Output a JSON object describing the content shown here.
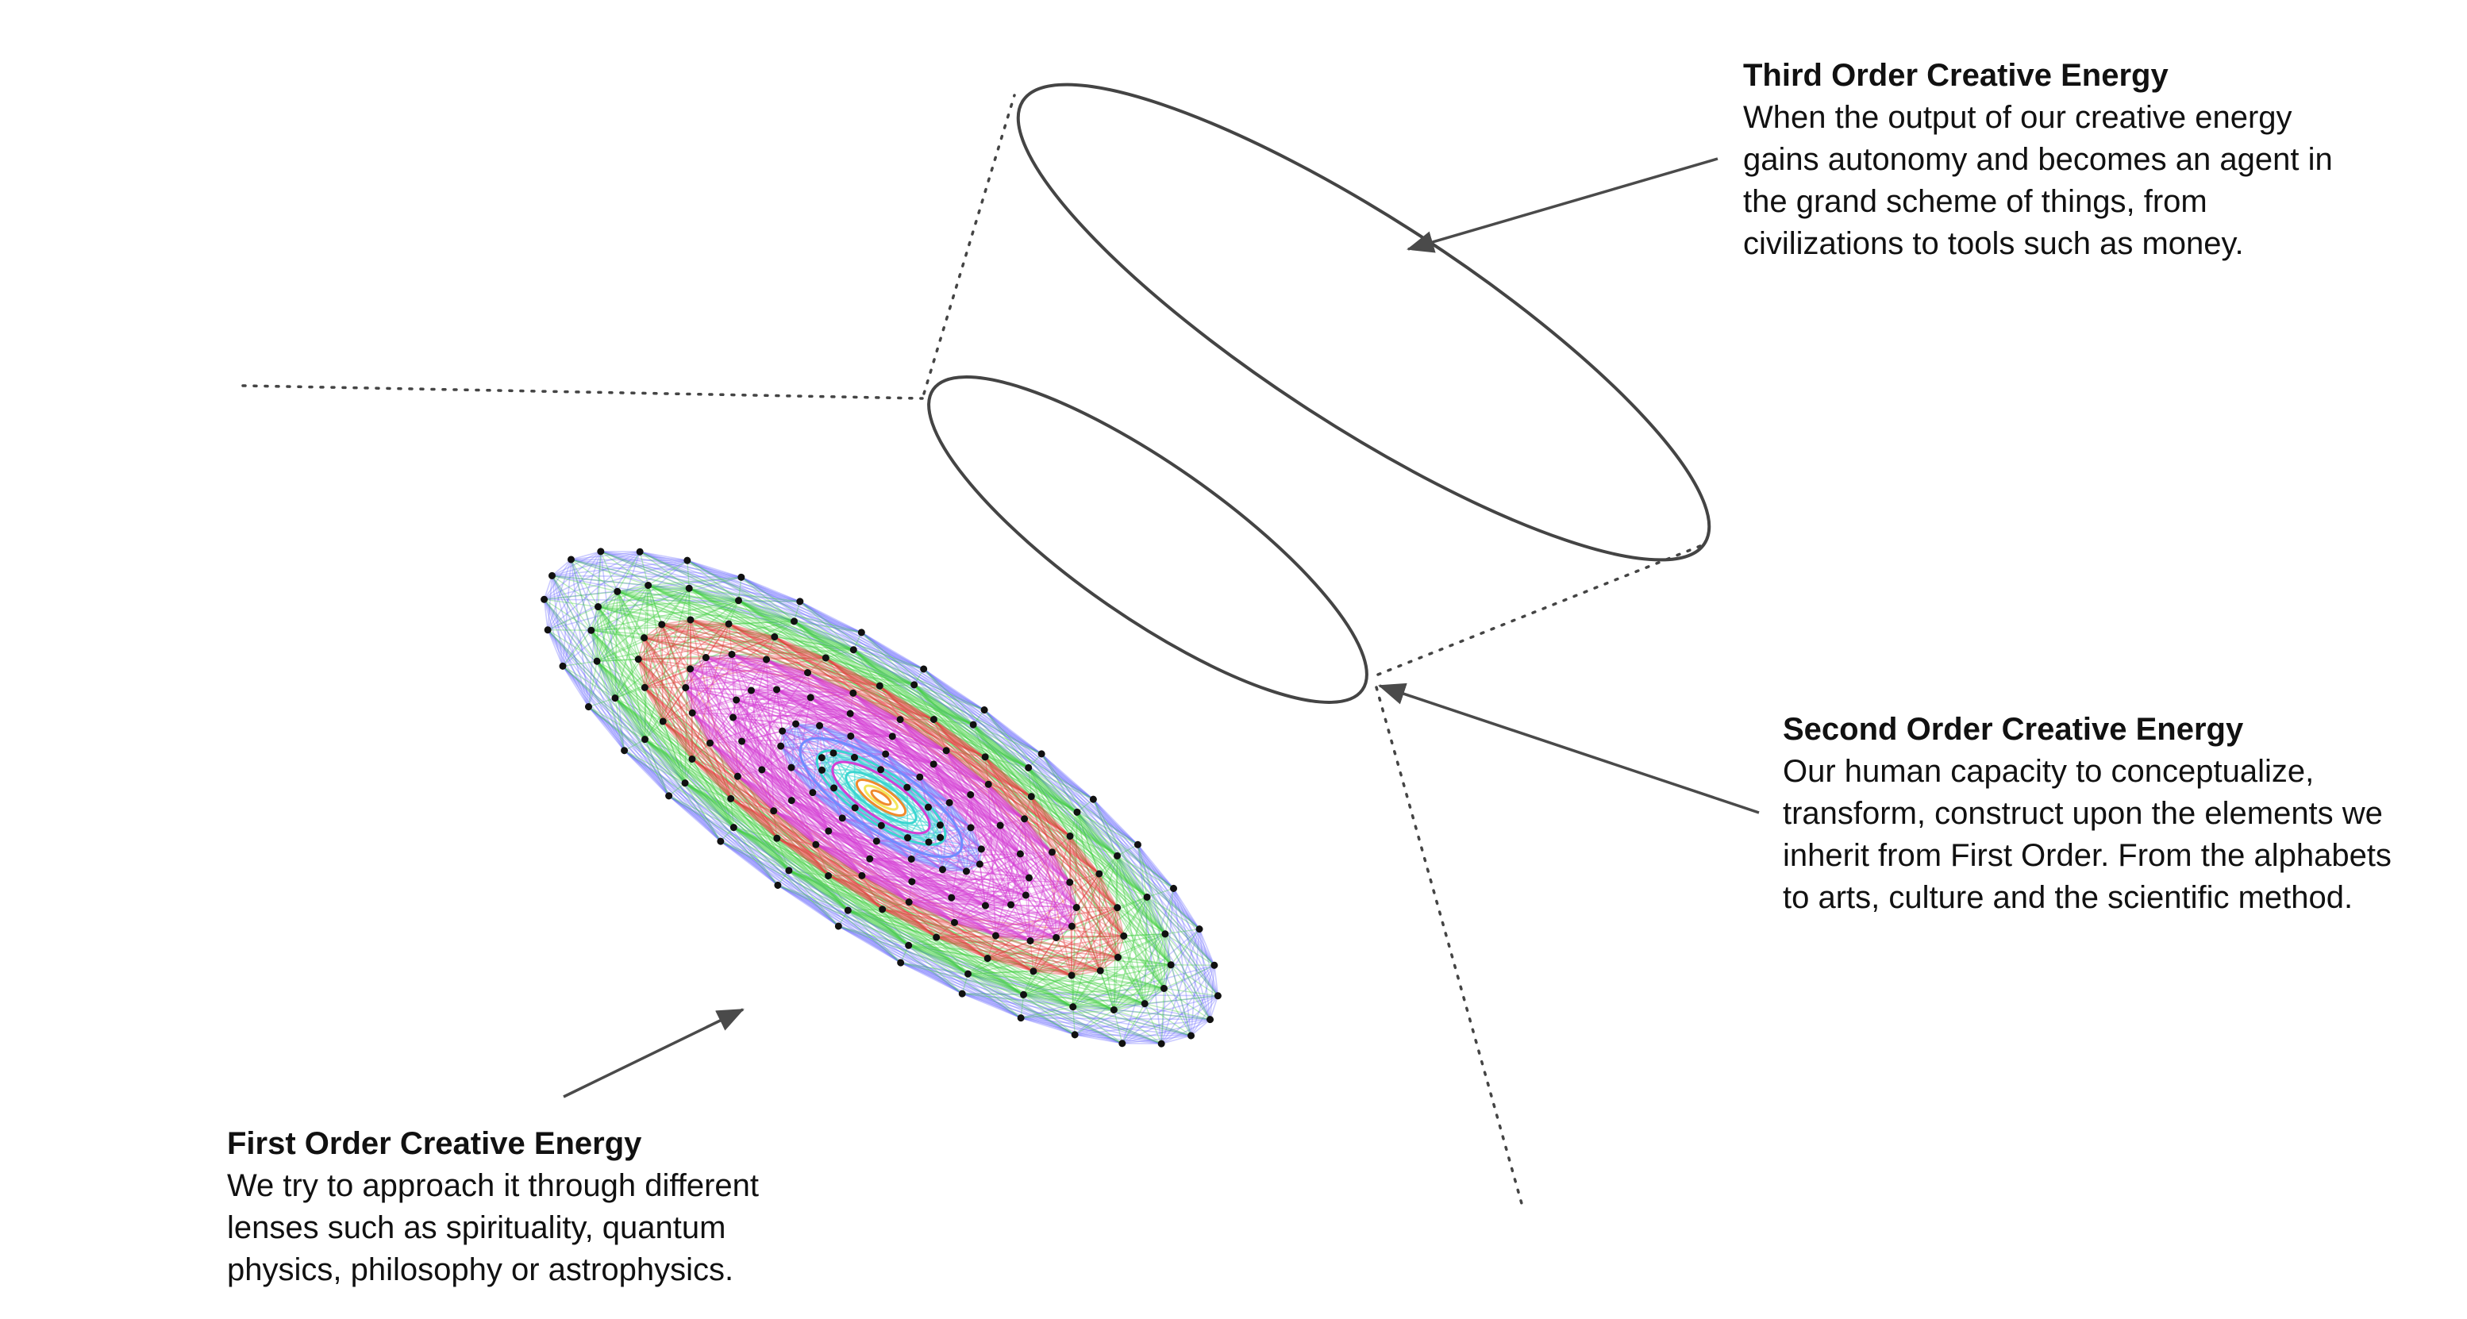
{
  "captions": {
    "third": {
      "title": "Third Order Creative Energy",
      "body": "When the output of our creative energy\ngains autonomy and becomes an agent in\nthe grand scheme of things, from\ncivilizations to tools such as money."
    },
    "second": {
      "title": "Second Order Creative Energy",
      "body": "Our human capacity to conceptualize,\ntransform, construct upon the elements we\ninherit from First Order. From the alphabets\nto arts, culture and the scientific method."
    },
    "first": {
      "title": "First Order Creative Energy",
      "body": "We try to approach it through different\nlenses such as spirituality, quantum\nphysics, philosophy or astrophysics."
    }
  },
  "colors": {
    "outer_web": "#3fcf3f",
    "outer_web_edge": "#6a6aff",
    "red_ring": "#e63c3c",
    "magenta_web": "#d43fd4",
    "blue_web": "#6f8cff",
    "cyan_core": "#3ad6d0",
    "core_yellow": "#f2e65a",
    "core_orange": "#f08a2c",
    "nodes": "#111111",
    "outline": "#444444",
    "arrow": "#4a4a4a"
  }
}
